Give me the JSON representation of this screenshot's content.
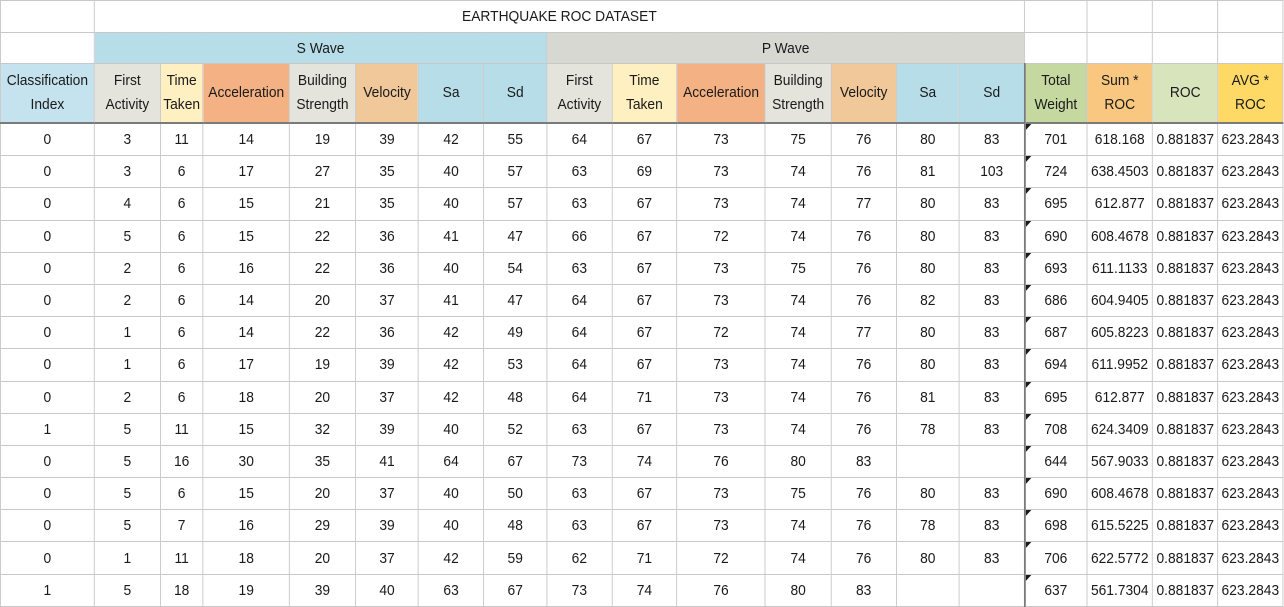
{
  "title": "EARTHQUAKE ROC DATASET",
  "groups": {
    "s_wave": "S Wave",
    "p_wave": "P Wave"
  },
  "headers": {
    "classification": [
      "Classification",
      "Index"
    ],
    "s": [
      [
        "First",
        "Activity"
      ],
      [
        "Time",
        "Taken"
      ],
      [
        "Acceleration"
      ],
      [
        "Building",
        "Strength"
      ],
      [
        "Velocity"
      ],
      [
        "Sa"
      ],
      [
        "Sd"
      ]
    ],
    "p": [
      [
        "First",
        "Activity"
      ],
      [
        "Time",
        "Taken"
      ],
      [
        "Acceleration"
      ],
      [
        "Building",
        "Strength"
      ],
      [
        "Velocity"
      ],
      [
        "Sa"
      ],
      [
        "Sd"
      ]
    ],
    "total_weight": [
      "Total",
      "Weight"
    ],
    "sum_roc": [
      "Sum *",
      "ROC"
    ],
    "roc": [
      "ROC"
    ],
    "avg_roc": [
      "AVG *",
      "ROC"
    ]
  },
  "rows": [
    [
      "0",
      "3",
      "11",
      "14",
      "19",
      "39",
      "42",
      "55",
      "64",
      "67",
      "73",
      "75",
      "76",
      "80",
      "83",
      "701",
      "618.168",
      "0.881837",
      "623.2843"
    ],
    [
      "0",
      "3",
      "6",
      "17",
      "27",
      "35",
      "40",
      "57",
      "63",
      "69",
      "73",
      "74",
      "76",
      "81",
      "103",
      "724",
      "638.4503",
      "0.881837",
      "623.2843"
    ],
    [
      "0",
      "4",
      "6",
      "15",
      "21",
      "35",
      "40",
      "57",
      "63",
      "67",
      "73",
      "74",
      "77",
      "80",
      "83",
      "695",
      "612.877",
      "0.881837",
      "623.2843"
    ],
    [
      "0",
      "5",
      "6",
      "15",
      "22",
      "36",
      "41",
      "47",
      "66",
      "67",
      "72",
      "74",
      "76",
      "80",
      "83",
      "690",
      "608.4678",
      "0.881837",
      "623.2843"
    ],
    [
      "0",
      "2",
      "6",
      "16",
      "22",
      "36",
      "40",
      "54",
      "63",
      "67",
      "73",
      "75",
      "76",
      "80",
      "83",
      "693",
      "611.1133",
      "0.881837",
      "623.2843"
    ],
    [
      "0",
      "2",
      "6",
      "14",
      "20",
      "37",
      "41",
      "47",
      "64",
      "67",
      "73",
      "74",
      "76",
      "82",
      "83",
      "686",
      "604.9405",
      "0.881837",
      "623.2843"
    ],
    [
      "0",
      "1",
      "6",
      "14",
      "22",
      "36",
      "42",
      "49",
      "64",
      "67",
      "72",
      "74",
      "77",
      "80",
      "83",
      "687",
      "605.8223",
      "0.881837",
      "623.2843"
    ],
    [
      "0",
      "1",
      "6",
      "17",
      "19",
      "39",
      "42",
      "53",
      "64",
      "67",
      "73",
      "74",
      "76",
      "80",
      "83",
      "694",
      "611.9952",
      "0.881837",
      "623.2843"
    ],
    [
      "0",
      "2",
      "6",
      "18",
      "20",
      "37",
      "42",
      "48",
      "64",
      "71",
      "73",
      "74",
      "76",
      "81",
      "83",
      "695",
      "612.877",
      "0.881837",
      "623.2843"
    ],
    [
      "1",
      "5",
      "11",
      "15",
      "32",
      "39",
      "40",
      "52",
      "63",
      "67",
      "73",
      "74",
      "76",
      "78",
      "83",
      "708",
      "624.3409",
      "0.881837",
      "623.2843"
    ],
    [
      "0",
      "5",
      "16",
      "30",
      "35",
      "41",
      "64",
      "67",
      "73",
      "74",
      "76",
      "80",
      "83",
      "",
      "",
      "644",
      "567.9033",
      "0.881837",
      "623.2843"
    ],
    [
      "0",
      "5",
      "6",
      "15",
      "20",
      "37",
      "40",
      "50",
      "63",
      "67",
      "73",
      "75",
      "76",
      "80",
      "83",
      "690",
      "608.4678",
      "0.881837",
      "623.2843"
    ],
    [
      "0",
      "5",
      "7",
      "16",
      "29",
      "39",
      "40",
      "48",
      "63",
      "67",
      "73",
      "74",
      "76",
      "78",
      "83",
      "698",
      "615.5225",
      "0.881837",
      "623.2843"
    ],
    [
      "0",
      "1",
      "11",
      "18",
      "20",
      "37",
      "42",
      "59",
      "62",
      "71",
      "72",
      "74",
      "76",
      "80",
      "83",
      "706",
      "622.5772",
      "0.881837",
      "623.2843"
    ],
    [
      "1",
      "5",
      "18",
      "19",
      "39",
      "40",
      "63",
      "67",
      "73",
      "74",
      "76",
      "80",
      "83",
      "",
      "",
      "637",
      "561.7304",
      "0.881837",
      "623.2843"
    ]
  ],
  "colors": {
    "s_wave_group": "#b7dee8",
    "p_wave_group": "#d8d8d2",
    "acceleration": "#f4b183",
    "velocity": "#f2c39a",
    "time_taken": "#fff0c2",
    "sa_sd": "#b7dee8",
    "total_weight": "#c4d8a0",
    "sum_roc": "#f9c77f",
    "avg_roc": "#ffd966"
  }
}
